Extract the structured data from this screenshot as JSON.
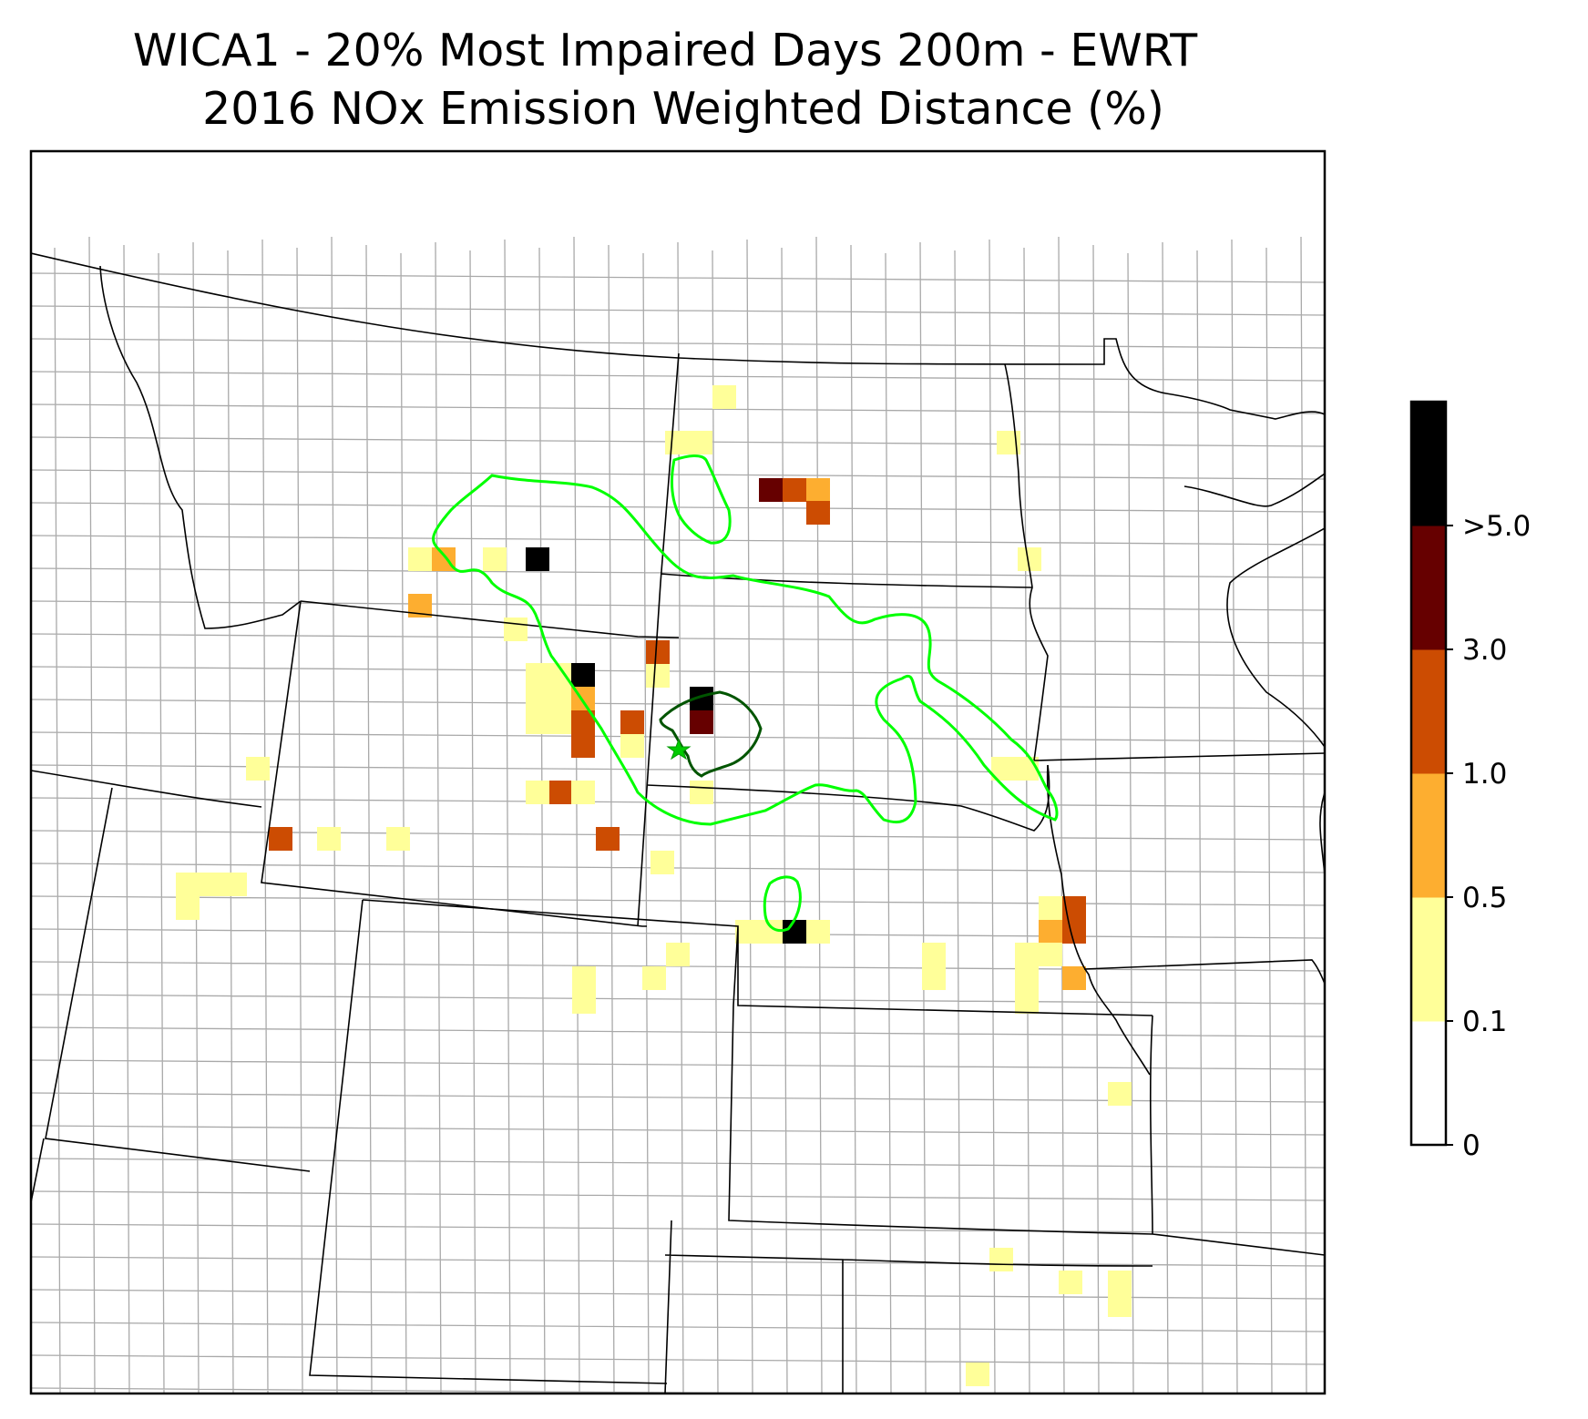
{
  "title": {
    "line1": "WICA1 - 20% Most Impaired Days 200m - EWRT",
    "line2": "2016 NOx Emission Weighted Distance (%)"
  },
  "colorbar": {
    "bins": [
      {
        "color": "#ffffff"
      },
      {
        "color": "#ffff99"
      },
      {
        "color": "#fdae30"
      },
      {
        "color": "#cc4c02"
      },
      {
        "color": "#660000"
      },
      {
        "color": "#000000"
      }
    ],
    "tick_labels": [
      "0",
      "0.1",
      "0.5",
      "1.0",
      "3.0",
      ">5.0"
    ]
  },
  "colors": {
    "level_0_1": "#ffff99",
    "level_0_5": "#fdae30",
    "level_1_0": "#cc4c02",
    "level_3_0": "#660000",
    "level_5_0": "#000000",
    "contour_outer": "#00ff00",
    "contour_inner": "#005500",
    "site_marker": "#00cc00",
    "state_line": "#000000",
    "county_line": "#a9a9a9"
  },
  "site_marker_icon": "star-icon"
}
